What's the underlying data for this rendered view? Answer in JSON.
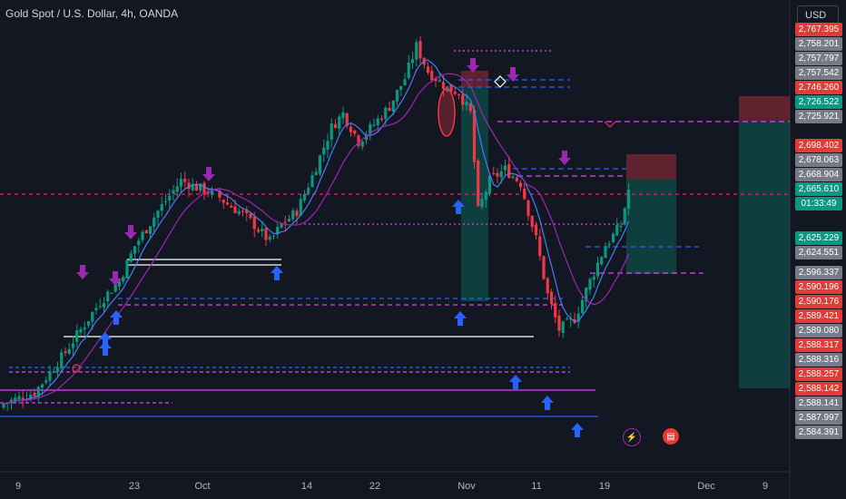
{
  "header": {
    "title": "Gold Spot / U.S. Dollar, 4h, OANDA",
    "currency": "USD"
  },
  "price_labels": [
    {
      "text": "2,767.395",
      "color": "#e53935"
    },
    {
      "text": "2,758.201",
      "color": "#787b86"
    },
    {
      "text": "2,757.797",
      "color": "#787b86"
    },
    {
      "text": "2,757.542",
      "color": "#787b86"
    },
    {
      "text": "2,746.260",
      "color": "#e53935"
    },
    {
      "text": "2,726.522",
      "color": "#089981"
    },
    {
      "text": "2,725.921",
      "color": "#787b86"
    },
    {
      "text": "2,698.402",
      "color": "#e53935"
    },
    {
      "text": "2,678.063",
      "color": "#787b86"
    },
    {
      "text": "2,668.904",
      "color": "#787b86"
    },
    {
      "text": "2,665.610",
      "color": "#089981"
    },
    {
      "text": "01:33:49",
      "color": "#089981"
    },
    {
      "text": "2,625.229",
      "color": "#089981"
    },
    {
      "text": "2,624.551",
      "color": "#787b86"
    },
    {
      "text": "2,596.337",
      "color": "#787b86"
    },
    {
      "text": "2,590.196",
      "color": "#e53935"
    },
    {
      "text": "2,590.176",
      "color": "#e53935"
    },
    {
      "text": "2,589.421",
      "color": "#e53935"
    },
    {
      "text": "2,589.080",
      "color": "#787b86"
    },
    {
      "text": "2,588.317",
      "color": "#e53935"
    },
    {
      "text": "2,588.316",
      "color": "#787b86"
    },
    {
      "text": "2,588.257",
      "color": "#e53935"
    },
    {
      "text": "2,588.142",
      "color": "#e53935"
    },
    {
      "text": "2,588.141",
      "color": "#787b86"
    },
    {
      "text": "2,587.997",
      "color": "#787b86"
    },
    {
      "text": "2,584.391",
      "color": "#787b86"
    }
  ],
  "x_ticks": [
    "9",
    "23",
    "Oct",
    "14",
    "22",
    "Nov",
    "11",
    "19",
    "Dec",
    "9"
  ],
  "chart_data": {
    "type": "candlestick",
    "symbol": "Gold Spot / U.S. Dollar",
    "timeframe": "4h",
    "source": "OANDA",
    "last_price": 2665.61,
    "countdown": "01:33:49",
    "ylim": [
      2500,
      2800
    ],
    "colors": {
      "up": "#089981",
      "down": "#f23645",
      "background": "#131722"
    },
    "price_path": [
      [
        0,
        2512
      ],
      [
        8,
        2520
      ],
      [
        15,
        2545
      ],
      [
        20,
        2565
      ],
      [
        25,
        2585
      ],
      [
        30,
        2600
      ],
      [
        34,
        2625
      ],
      [
        40,
        2650
      ],
      [
        46,
        2672
      ],
      [
        50,
        2667
      ],
      [
        55,
        2662
      ],
      [
        58,
        2655
      ],
      [
        62,
        2648
      ],
      [
        65,
        2640
      ],
      [
        69,
        2628
      ],
      [
        72,
        2640
      ],
      [
        76,
        2650
      ],
      [
        80,
        2675
      ],
      [
        85,
        2710
      ],
      [
        88,
        2720
      ],
      [
        92,
        2700
      ],
      [
        96,
        2712
      ],
      [
        100,
        2725
      ],
      [
        104,
        2745
      ],
      [
        107,
        2768
      ],
      [
        110,
        2750
      ],
      [
        115,
        2738
      ],
      [
        118,
        2735
      ],
      [
        121,
        2720
      ],
      [
        123,
        2650
      ],
      [
        126,
        2672
      ],
      [
        130,
        2680
      ],
      [
        134,
        2670
      ],
      [
        138,
        2630
      ],
      [
        141,
        2590
      ],
      [
        144,
        2565
      ],
      [
        148,
        2573
      ],
      [
        152,
        2600
      ],
      [
        156,
        2625
      ],
      [
        160,
        2640
      ],
      [
        162,
        2665
      ]
    ],
    "fast_ma_color": "#4a7cf7",
    "slow_ma_color": "#9c27b0"
  }
}
